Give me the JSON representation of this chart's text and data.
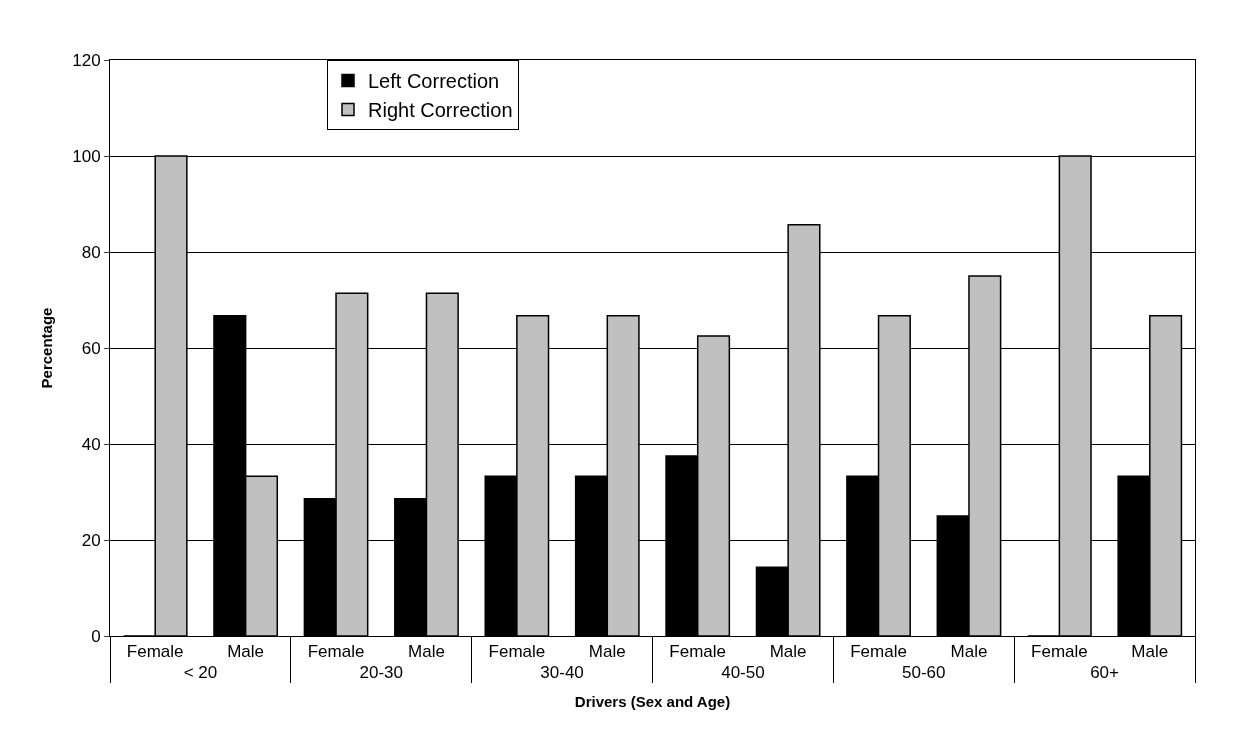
{
  "chart_data": {
    "type": "bar",
    "xlabel": "Drivers (Sex and Age)",
    "ylabel": "Percentage",
    "categories": [
      "Female",
      "Male",
      "Female",
      "Male",
      "Female",
      "Male",
      "Female",
      "Male",
      "Female",
      "Male",
      "Female",
      "Male"
    ],
    "annotations": [
      "< 20",
      "20-30",
      "30-40",
      "40-50",
      "50-60",
      "60+"
    ],
    "series": [
      {
        "name": "Left Correction",
        "color": "#000000",
        "values": [
          0,
          66.7,
          28.6,
          28.6,
          33.3,
          33.3,
          37.5,
          14.3,
          33.3,
          25,
          0,
          33.3
        ]
      },
      {
        "name": "Right Correction",
        "color": "#c0c0c0",
        "values": [
          100,
          33.3,
          71.4,
          71.4,
          66.7,
          66.7,
          62.5,
          85.7,
          66.7,
          75,
          100,
          66.7
        ]
      }
    ],
    "ylim": [
      0,
      120
    ],
    "yticks": [
      0,
      20,
      40,
      60,
      80,
      100,
      120
    ],
    "grid": "y",
    "legend": "top left"
  }
}
